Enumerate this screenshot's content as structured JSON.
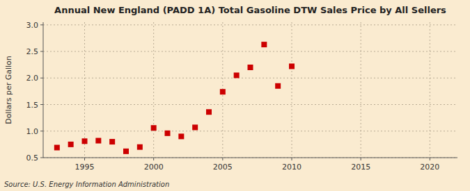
{
  "chart_data": {
    "type": "scatter",
    "title": "Annual New England (PADD 1A) Total Gasoline DTW Sales Price by All Sellers",
    "y_label": "Dollars per Gallon",
    "annotations": [
      "Source: U.S. Energy Information Administration"
    ],
    "x": [
      1993,
      1994,
      1995,
      1996,
      1997,
      1998,
      1999,
      2000,
      2001,
      2002,
      2003,
      2004,
      2005,
      2006,
      2007,
      2008,
      2009,
      2010
    ],
    "values": [
      0.69,
      0.75,
      0.81,
      0.82,
      0.8,
      0.62,
      0.7,
      1.06,
      0.96,
      0.9,
      1.07,
      1.36,
      1.74,
      2.05,
      2.2,
      2.63,
      1.85,
      2.22
    ],
    "color": "#cc0000",
    "marker": "square",
    "xlim": [
      1992,
      2022
    ],
    "ylim": [
      0.5,
      3.05
    ],
    "xticks": [
      1995,
      2000,
      2005,
      2010,
      2015,
      2020
    ],
    "yticks": [
      0.5,
      {
        "value": 1.0,
        "label": "1.0"
      },
      1.5,
      {
        "value": 2.0,
        "label": "2.0"
      },
      2.5,
      {
        "value": 3.0,
        "label": "3.0"
      }
    ],
    "grid": true
  }
}
